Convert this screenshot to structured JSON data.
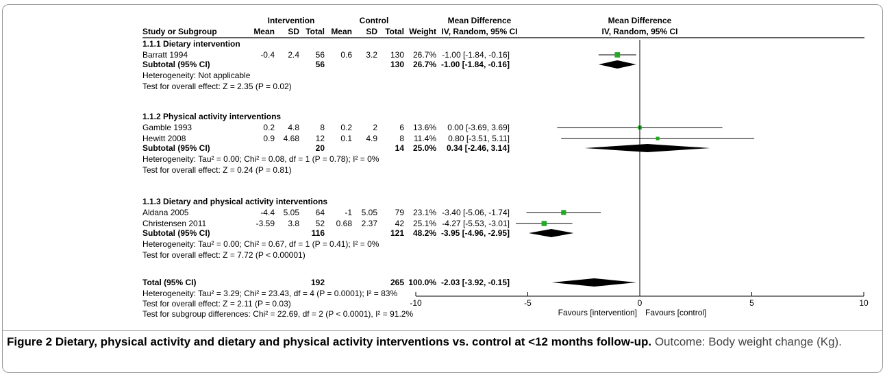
{
  "chart_data": {
    "type": "forest",
    "headers": {
      "study": "Study or Subgroup",
      "intervention": "Intervention",
      "control": "Control",
      "mean": "Mean",
      "sd": "SD",
      "total": "Total",
      "weight": "Weight",
      "md": "Mean Difference",
      "md_method": "IV, Random, 95% CI",
      "plot_md": "Mean Difference",
      "plot_method": "IV, Random, 95% CI"
    },
    "groups": [
      {
        "title": "1.1.1 Dietary intervention",
        "studies": [
          {
            "name": "Barratt 1994",
            "int_mean": "-0.4",
            "int_sd": "2.4",
            "int_total": "56",
            "ctl_mean": "0.6",
            "ctl_sd": "3.2",
            "ctl_total": "130",
            "weight": "26.7%",
            "ci_text": "-1.00 [-1.84, -0.16]",
            "md": -1.0,
            "lo": -1.84,
            "hi": -0.16,
            "w": 26.7
          }
        ],
        "subtotal": {
          "label": "Subtotal (95% CI)",
          "int_total": "56",
          "ctl_total": "130",
          "weight": "26.7%",
          "ci_text": "-1.00 [-1.84, -0.16]",
          "md": -1.0,
          "lo": -1.84,
          "hi": -0.16
        },
        "notes": [
          "Heterogeneity: Not applicable",
          "Test for overall effect: Z = 2.35 (P = 0.02)"
        ]
      },
      {
        "title": "1.1.2 Physical activity interventions",
        "studies": [
          {
            "name": "Gamble 1993",
            "int_mean": "0.2",
            "int_sd": "4.8",
            "int_total": "8",
            "ctl_mean": "0.2",
            "ctl_sd": "2",
            "ctl_total": "6",
            "weight": "13.6%",
            "ci_text": "0.00 [-3.69, 3.69]",
            "md": 0.0,
            "lo": -3.69,
            "hi": 3.69,
            "w": 13.6
          },
          {
            "name": "Hewitt 2008",
            "int_mean": "0.9",
            "int_sd": "4.68",
            "int_total": "12",
            "ctl_mean": "0.1",
            "ctl_sd": "4.9",
            "ctl_total": "8",
            "weight": "11.4%",
            "ci_text": "0.80 [-3.51, 5.11]",
            "md": 0.8,
            "lo": -3.51,
            "hi": 5.11,
            "w": 11.4
          }
        ],
        "subtotal": {
          "label": "Subtotal (95% CI)",
          "int_total": "20",
          "ctl_total": "14",
          "weight": "25.0%",
          "ci_text": "0.34 [-2.46, 3.14]",
          "md": 0.34,
          "lo": -2.46,
          "hi": 3.14
        },
        "notes": [
          "Heterogeneity: Tau² = 0.00; Chi² = 0.08, df = 1 (P = 0.78); I² = 0%",
          "Test for overall effect: Z = 0.24 (P = 0.81)"
        ]
      },
      {
        "title": "1.1.3 Dietary and physical activity interventions",
        "studies": [
          {
            "name": "Aldana 2005",
            "int_mean": "-4.4",
            "int_sd": "5.05",
            "int_total": "64",
            "ctl_mean": "-1",
            "ctl_sd": "5.05",
            "ctl_total": "79",
            "weight": "23.1%",
            "ci_text": "-3.40 [-5.06, -1.74]",
            "md": -3.4,
            "lo": -5.06,
            "hi": -1.74,
            "w": 23.1
          },
          {
            "name": "Christensen 2011",
            "int_mean": "-3.59",
            "int_sd": "3.8",
            "int_total": "52",
            "ctl_mean": "0.68",
            "ctl_sd": "2.37",
            "ctl_total": "42",
            "weight": "25.1%",
            "ci_text": "-4.27 [-5.53, -3.01]",
            "md": -4.27,
            "lo": -5.53,
            "hi": -3.01,
            "w": 25.1
          }
        ],
        "subtotal": {
          "label": "Subtotal (95% CI)",
          "int_total": "116",
          "ctl_total": "121",
          "weight": "48.2%",
          "ci_text": "-3.95 [-4.96, -2.95]",
          "md": -3.95,
          "lo": -4.96,
          "hi": -2.95
        },
        "notes": [
          "Heterogeneity: Tau² = 0.00; Chi² = 0.67, df = 1 (P = 0.41); I² = 0%",
          "Test for overall effect: Z = 7.72 (P < 0.00001)"
        ]
      }
    ],
    "total": {
      "label": "Total (95% CI)",
      "int_total": "192",
      "ctl_total": "265",
      "weight": "100.0%",
      "ci_text": "-2.03 [-3.92, -0.15]",
      "md": -2.03,
      "lo": -3.92,
      "hi": -0.15
    },
    "total_notes": [
      "Heterogeneity: Tau² = 3.29; Chi² = 23.43, df = 4 (P = 0.0001); I² = 83%",
      "Test for overall effect: Z = 2.11 (P = 0.03)",
      "Test for subgroup differences: Chi² = 22.69, df = 2 (P < 0.0001), I² = 91.2%"
    ],
    "axis": {
      "xlim": [
        -10,
        10
      ],
      "ticks": [
        -10,
        -5,
        0,
        5,
        10
      ],
      "tick_labels": [
        "-10",
        "-5",
        "0",
        "5",
        "10"
      ]
    },
    "favours_left": "Favours [intervention]",
    "favours_right": "Favours [control]",
    "colors": {
      "point": "#22aa22",
      "diamond": "#000000",
      "line": "#000000"
    }
  },
  "caption": {
    "label": "Figure 2",
    "title": "Dietary, physical activity and dietary and physical activity interventions vs. control at <12 months follow-up.",
    "text": "Outcome: Body weight change (Kg)."
  }
}
